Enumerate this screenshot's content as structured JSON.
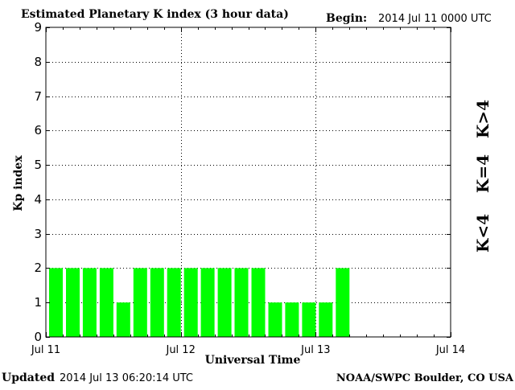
{
  "header": {
    "title": "Estimated Planetary K index (3 hour data)",
    "begin_label": "Begin:",
    "begin_value": "2014 Jul 11 0000 UTC"
  },
  "footer": {
    "updated_label": "Updated",
    "updated_value": "2014 Jul 13 06:20:14 UTC",
    "source": "NOAA/SWPC Boulder, CO USA"
  },
  "legend": {
    "lt4": {
      "text": "K<4",
      "color": "#00ff00"
    },
    "eq4": {
      "text": "K=4",
      "color": "#ffd700"
    },
    "gt4": {
      "text": "K>4",
      "color": "#ff2000"
    }
  },
  "chart_data": {
    "type": "bar",
    "title": "Estimated Planetary K index (3 hour data)",
    "xlabel": "Universal Time",
    "ylabel": "Kp index",
    "ylim": [
      0,
      9
    ],
    "yticks": [
      "0",
      "1",
      "2",
      "3",
      "4",
      "5",
      "6",
      "7",
      "8",
      "9"
    ],
    "xticks": [
      "Jul 11",
      "Jul 12",
      "Jul 13",
      "Jul 14"
    ],
    "grid": "dotted",
    "bar_interval": "3 hours",
    "categories": [
      "Jul 11 00",
      "Jul 11 03",
      "Jul 11 06",
      "Jul 11 09",
      "Jul 11 12",
      "Jul 11 15",
      "Jul 11 18",
      "Jul 11 21",
      "Jul 12 00",
      "Jul 12 03",
      "Jul 12 06",
      "Jul 12 09",
      "Jul 12 12",
      "Jul 12 15",
      "Jul 12 18",
      "Jul 12 21",
      "Jul 13 00",
      "Jul 13 03"
    ],
    "values": [
      2,
      2,
      2,
      2,
      1,
      2,
      2,
      2,
      2,
      2,
      2,
      2,
      2,
      1,
      1,
      1,
      1,
      2
    ],
    "bar_color": "#00ff00"
  }
}
